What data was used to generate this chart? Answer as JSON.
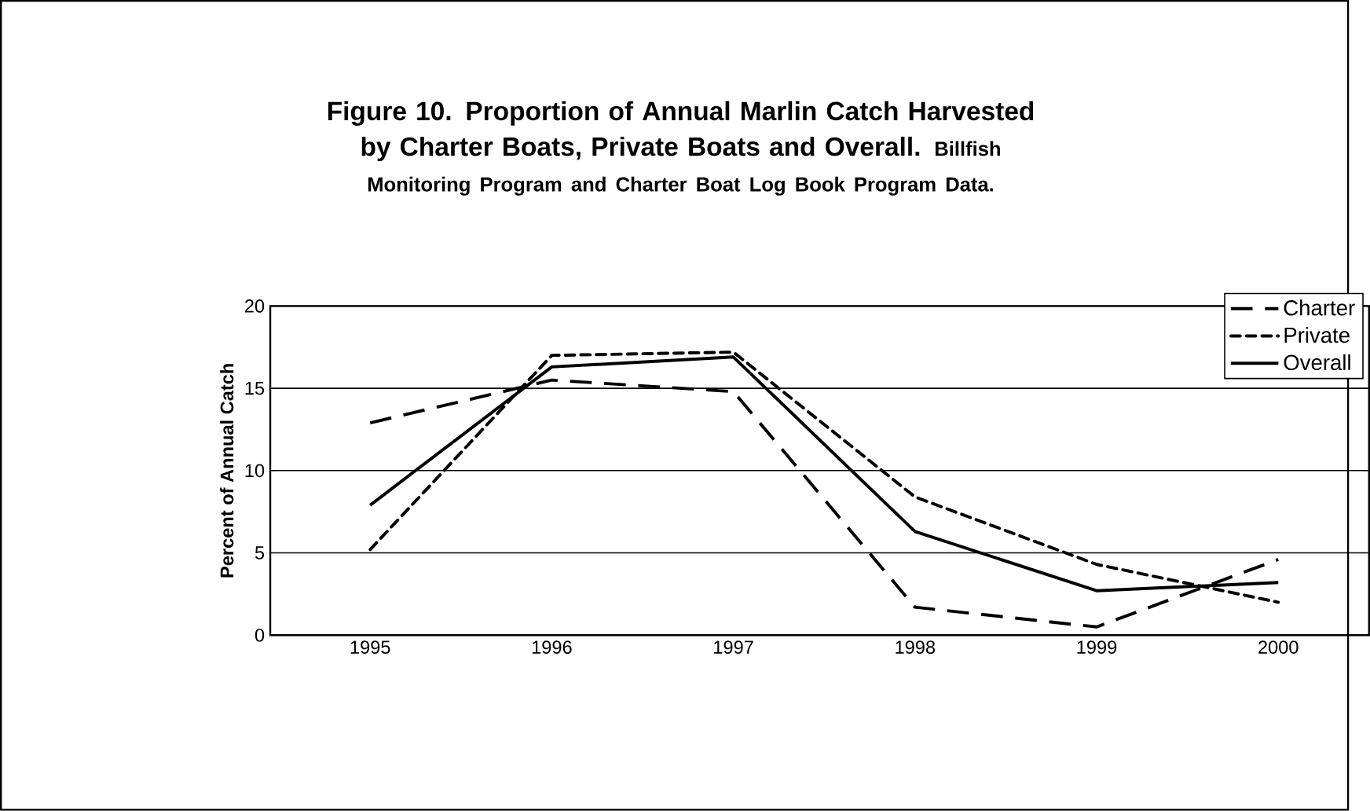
{
  "chart_data": {
    "type": "line",
    "title": "Figure 10.  Proportion of Annual Marlin Catch Harvested  by Charter Boats, Private Boats and Overall.",
    "subtitle": "Billfish Monitoring Program and Charter Boat Log Book Program Data.",
    "ylabel": "Percent of Annual Catch",
    "categories": [
      "1995",
      "1996",
      "1997",
      "1998",
      "1999",
      "2000"
    ],
    "series": [
      {
        "name": "Charter",
        "color": "#000000",
        "line_style": "dashed",
        "values": [
          12.9,
          15.5,
          14.8,
          1.7,
          0.5,
          4.6
        ]
      },
      {
        "name": "Private",
        "color": "#000000",
        "line_style": "dotted",
        "values": [
          5.2,
          17.0,
          17.2,
          8.4,
          4.3,
          2.0
        ]
      },
      {
        "name": "Overall",
        "color": "#000000",
        "line_style": "solid",
        "values": [
          7.9,
          16.3,
          16.9,
          6.3,
          2.7,
          3.2
        ]
      }
    ],
    "ylim": [
      0,
      20
    ],
    "yticks": [
      0,
      5,
      10,
      15,
      20
    ],
    "grid": "y",
    "legend": "top right",
    "marker": "none"
  }
}
